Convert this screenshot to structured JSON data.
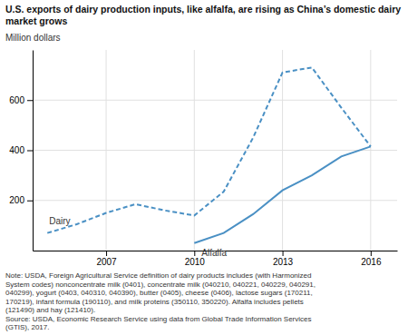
{
  "chart_data": {
    "type": "line",
    "title": "U.S. exports of dairy production inputs, like alfalfa, are rising as China’s domestic dairy\nmarket grows",
    "ylabel": "Million dollars",
    "annotations": [
      "Note: USDA, Foreign Agricultural Service definition of dairy products includes (with Harmonized\nSystem codes) nonconcentrate milk (0401), concentrate milk (040210, 040221, 040229, 040291,\n040299), yogurt (0403, 040310, 040390), butter (0405), cheese (0406), lactose sugars (170211,\n170219), infant formula (190110), and milk proteins (350110, 350220). Alfalfa includes pellets\n(121490) and hay (121410).\nSource: USDA, Economic Research Service using data from Global Trade Information Services\n(GTIS), 2017."
    ],
    "x": [
      2005,
      2006,
      2007,
      2008,
      2009,
      2010,
      2011,
      2012,
      2013,
      2014,
      2015,
      2016
    ],
    "series": [
      {
        "name": "Dairy",
        "color": "#4a90c4",
        "line_style": "dashed",
        "values": [
          70,
          105,
          150,
          185,
          160,
          140,
          235,
          450,
          710,
          730,
          570,
          415
        ]
      },
      {
        "name": "Alfalfa",
        "color": "#4a90c4",
        "line_style": "solid",
        "values": [
          null,
          null,
          null,
          null,
          null,
          30,
          70,
          145,
          240,
          300,
          375,
          415
        ]
      }
    ],
    "xlim": [
      2004.5,
      2016.9
    ],
    "xticks": [
      2007,
      2010,
      2013,
      2016
    ],
    "ylim": [
      0,
      800
    ],
    "yticks": [
      200,
      400,
      600
    ],
    "grid": true
  }
}
